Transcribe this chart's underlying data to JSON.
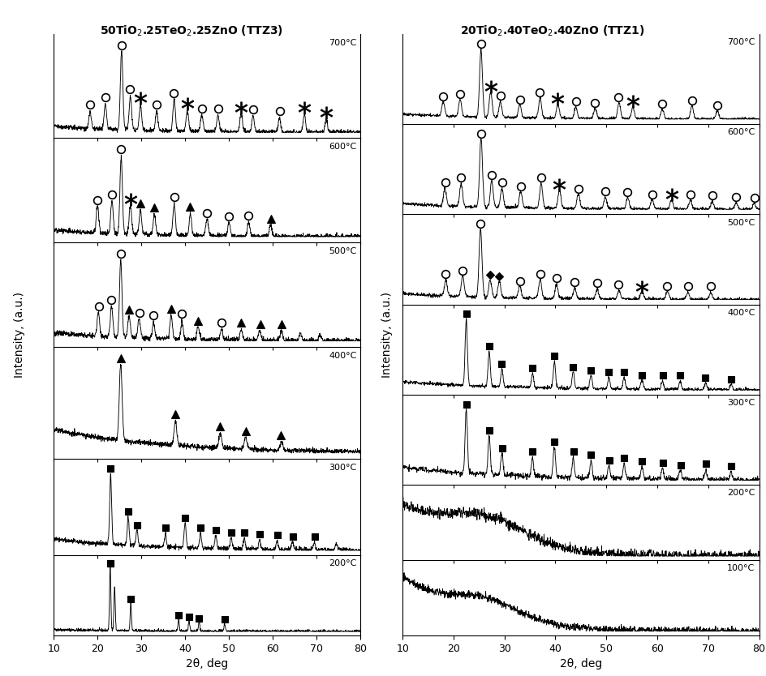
{
  "title_left": "50TiO$_2$.25TeO$_2$.25ZnO (TTZ3)",
  "title_right": "20TiO$_2$.40TeO$_2$.40ZnO (TTZ1)",
  "xlabel": "2θ, deg",
  "ylabel": "Intensity, (a.u.)",
  "xmin": 10,
  "xmax": 80,
  "left_temps": [
    "200°C",
    "300°C",
    "400°C",
    "500°C",
    "600°C",
    "700°C"
  ],
  "right_temps": [
    "100°C",
    "200°C",
    "300°C",
    "400°C",
    "500°C",
    "600°C",
    "700°C"
  ],
  "bg": "#ffffff",
  "lc": "#000000"
}
